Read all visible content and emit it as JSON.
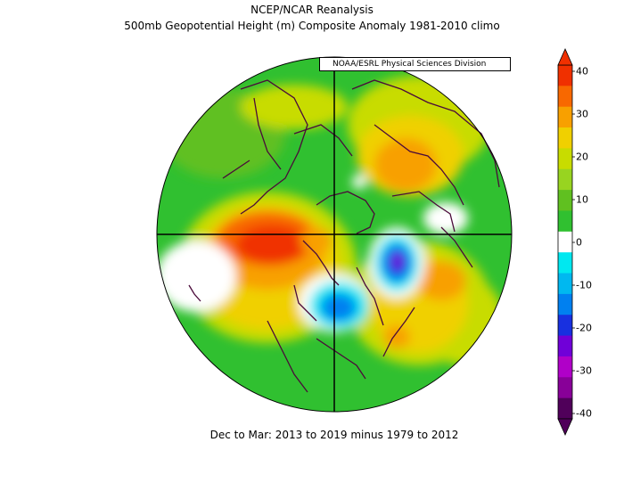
{
  "header": {
    "title": "NCEP/NCAR Reanalysis",
    "subtitle": "500mb Geopotential Height (m) Composite Anomaly 1981-2010 climo",
    "credit": "NOAA/ESRL Physical Sciences Division"
  },
  "footer": {
    "caption": "Dec to Mar: 2013 to 2019 minus 1979 to 2012"
  },
  "colorbar": {
    "labels": [
      "40",
      "30",
      "20",
      "10",
      "0",
      "-10",
      "-20",
      "-30",
      "-40"
    ],
    "colors": [
      "#f03000",
      "#f86800",
      "#f8a000",
      "#f0d000",
      "#c8dc00",
      "#98d420",
      "#60c020",
      "#30c030",
      "#ffffff",
      "#00e8f0",
      "#00b8f0",
      "#0080f0",
      "#1830e0",
      "#7000d8",
      "#b000c8",
      "#880098",
      "#50005a"
    ]
  },
  "map": {
    "projection": "north-polar-stereographic",
    "palette": {
      "background": "#30c030",
      "green_light": "#60c020",
      "yellow_green": "#c8dc00",
      "yellow": "#f0d000",
      "orange": "#f8a000",
      "orange_dark": "#f86800",
      "red": "#f03000",
      "white": "#ffffff",
      "cyan": "#00e8f0",
      "blue": "#0080f0",
      "blue_dark": "#1830e0",
      "purple": "#7000d8",
      "magenta": "#b000c8",
      "coast": "#4a0a3a"
    }
  }
}
